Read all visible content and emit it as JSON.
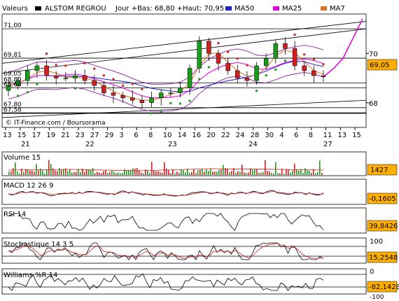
{
  "header": {
    "label": "Valeurs",
    "stock": "ALSTOM REGROU",
    "quote": "Jour +Bas: 68,80 +Haut: 70,95",
    "legend": [
      {
        "name": "MA50",
        "color": "#1f1fd0"
      },
      {
        "name": "MA25",
        "color": "#e000e0"
      },
      {
        "name": "MA7",
        "color": "#e07020"
      }
    ]
  },
  "watermark": "© IT-Finance.com / Boursorama",
  "main": {
    "left_levels": [
      "71,00",
      "69,81",
      "69,05",
      "68,80",
      "68,60",
      "67,80",
      "67,58"
    ],
    "right_ticks": [
      "70",
      "68"
    ],
    "last_value": "69,05",
    "day_labels": [
      "13",
      "15",
      "17",
      "19",
      "21",
      "23",
      "27",
      "29",
      "3",
      "6",
      "8",
      "10",
      "14",
      "16",
      "20",
      "22",
      "24",
      "28",
      "30",
      "4",
      "6",
      "8",
      "11",
      "13",
      "15"
    ],
    "period_labels": [
      "21",
      "22",
      "23",
      "24",
      "27"
    ]
  },
  "chart_data": [
    {
      "type": "candlestick",
      "title": "ALSTOM REGROU",
      "ylim": [
        67.0,
        71.6
      ],
      "series": [
        {
          "name": "Price",
          "close_points": [
            68.7,
            68.9,
            69.3,
            69.5,
            69.1,
            69.0,
            69.0,
            69.1,
            68.9,
            68.7,
            68.4,
            68.3,
            68.2,
            68.1,
            68.0,
            68.2,
            68.4,
            68.4,
            68.6,
            69.4,
            70.5,
            70.0,
            69.6,
            69.3,
            69.0,
            68.9,
            69.5,
            69.8,
            70.4,
            70.2,
            69.5,
            69.3,
            69.1,
            69.05
          ]
        },
        {
          "name": "MA50"
        },
        {
          "name": "MA25"
        },
        {
          "name": "MA7"
        }
      ]
    },
    {
      "type": "bar",
      "title": "Volume 15",
      "last_value": "1427"
    },
    {
      "type": "line",
      "title": "MACD 12 26 9",
      "last_value": "-0,1605"
    },
    {
      "type": "line",
      "title": "RSI 14",
      "last_value": "39,8426"
    },
    {
      "type": "line",
      "title": "Stochastique 14 3 5",
      "ylim": [
        0,
        100
      ],
      "last_value": "15,2548"
    },
    {
      "type": "line",
      "title": "Williams %R 14",
      "ylim": [
        -100,
        0
      ],
      "last_value": "-82,1428"
    }
  ],
  "panel_ticks": {
    "stoch_top": "100",
    "stoch_bottom": "0",
    "wr_top": "0",
    "wr_bottom": "-100"
  }
}
